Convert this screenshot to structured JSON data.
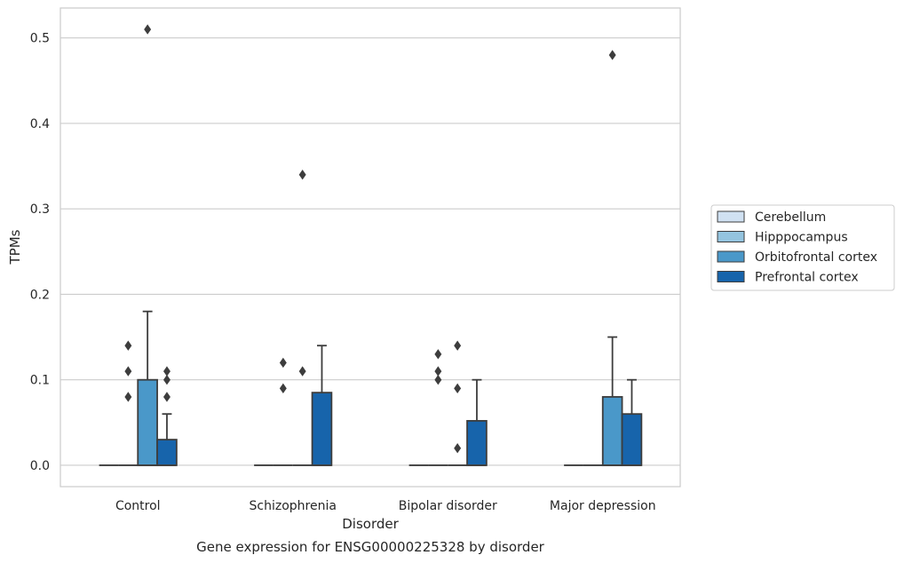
{
  "chart_data": {
    "type": "box",
    "title": "",
    "caption": "Gene expression for ENSG00000225328 by disorder",
    "xlabel": "Disorder",
    "ylabel": "TPMs",
    "ylim": [
      -0.025,
      0.535
    ],
    "yticks": [
      0.0,
      0.1,
      0.2,
      0.3,
      0.4,
      0.5
    ],
    "ytick_labels": [
      "0.0",
      "0.1",
      "0.2",
      "0.3",
      "0.4",
      "0.5"
    ],
    "grid": "horizontal",
    "legend_position": "right",
    "categories": [
      "Control",
      "Schizophrenia",
      "Bipolar disorder",
      "Major depression"
    ],
    "series": [
      {
        "name": "Cerebellum",
        "color": "#d0e1f2",
        "boxes": [
          {
            "q1": 0,
            "median": 0,
            "q3": 0,
            "whisker_low": 0,
            "whisker_high": 0,
            "outliers": []
          },
          {
            "q1": 0,
            "median": 0,
            "q3": 0,
            "whisker_low": 0,
            "whisker_high": 0,
            "outliers": []
          },
          {
            "q1": 0,
            "median": 0,
            "q3": 0,
            "whisker_low": 0,
            "whisker_high": 0,
            "outliers": []
          },
          {
            "q1": 0,
            "median": 0,
            "q3": 0,
            "whisker_low": 0,
            "whisker_high": 0,
            "outliers": []
          }
        ]
      },
      {
        "name": "Hipppocampus",
        "color": "#94c4df",
        "boxes": [
          {
            "q1": 0,
            "median": 0,
            "q3": 0,
            "whisker_low": 0,
            "whisker_high": 0,
            "outliers": [
              0.08,
              0.11,
              0.14
            ]
          },
          {
            "q1": 0,
            "median": 0,
            "q3": 0,
            "whisker_low": 0,
            "whisker_high": 0,
            "outliers": [
              0.09,
              0.12
            ]
          },
          {
            "q1": 0,
            "median": 0,
            "q3": 0,
            "whisker_low": 0,
            "whisker_high": 0,
            "outliers": [
              0.11,
              0.1,
              0.13
            ]
          },
          {
            "q1": 0,
            "median": 0,
            "q3": 0,
            "whisker_low": 0,
            "whisker_high": 0,
            "outliers": []
          }
        ]
      },
      {
        "name": "Orbitofrontal cortex",
        "color": "#4a98c9",
        "boxes": [
          {
            "q1": 0,
            "median": 0,
            "q3": 0.1,
            "whisker_low": 0,
            "whisker_high": 0.18,
            "outliers": [
              0.51
            ]
          },
          {
            "q1": 0,
            "median": 0,
            "q3": 0,
            "whisker_low": 0,
            "whisker_high": 0,
            "outliers": [
              0.11,
              0.34
            ]
          },
          {
            "q1": 0,
            "median": 0,
            "q3": 0,
            "whisker_low": 0,
            "whisker_high": 0,
            "outliers": [
              0.02,
              0.09,
              0.14
            ]
          },
          {
            "q1": 0,
            "median": 0,
            "q3": 0.08,
            "whisker_low": 0,
            "whisker_high": 0.15,
            "outliers": [
              0.48
            ]
          }
        ]
      },
      {
        "name": "Prefrontal cortex",
        "color": "#1764ab",
        "boxes": [
          {
            "q1": 0,
            "median": 0,
            "q3": 0.03,
            "whisker_low": 0,
            "whisker_high": 0.06,
            "outliers": [
              0.08,
              0.1,
              0.11
            ]
          },
          {
            "q1": 0,
            "median": 0,
            "q3": 0.085,
            "whisker_low": 0,
            "whisker_high": 0.14,
            "outliers": []
          },
          {
            "q1": 0,
            "median": 0,
            "q3": 0.052,
            "whisker_low": 0,
            "whisker_high": 0.1,
            "outliers": []
          },
          {
            "q1": 0,
            "median": 0,
            "q3": 0.06,
            "whisker_low": 0,
            "whisker_high": 0.1,
            "outliers": []
          }
        ]
      }
    ]
  }
}
